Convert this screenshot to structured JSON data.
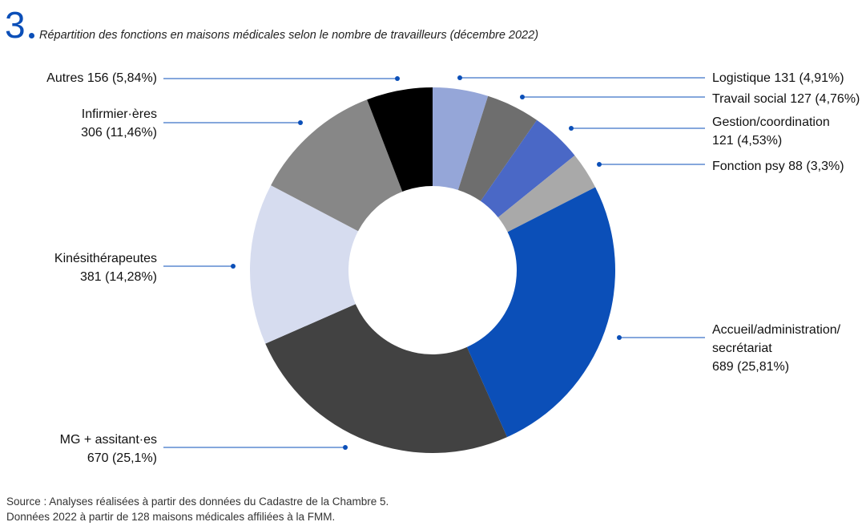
{
  "figure": {
    "number": "3",
    "title": "Répartition des fonctions en maisons médicales selon le nombre de travailleurs (décembre 2022)"
  },
  "source": {
    "line1": "Source : Analyses réalisées à partir des données du Cadastre de la Chambre 5.",
    "line2": "Données 2022 à partir de 128 maisons médicales affiliées à la FMM."
  },
  "chart_data": {
    "type": "pie",
    "subtype": "donut",
    "title": "Répartition des fonctions en maisons médicales selon le nombre de travailleurs (décembre 2022)",
    "slices": [
      {
        "name": "Logistique",
        "value": 131,
        "percent": 4.91,
        "color": "#95a6d8",
        "label_lines": [
          "Logistique 131 (4,91%)"
        ]
      },
      {
        "name": "Travail social",
        "value": 127,
        "percent": 4.76,
        "color": "#6e6e6e",
        "label_lines": [
          "Travail social 127 (4,76%)"
        ]
      },
      {
        "name": "Gestion/coordination",
        "value": 121,
        "percent": 4.53,
        "color": "#4a68c6",
        "label_lines": [
          "Gestion/coordination",
          "121 (4,53%)"
        ]
      },
      {
        "name": "Fonction psy",
        "value": 88,
        "percent": 3.3,
        "color": "#a9a9a9",
        "label_lines": [
          "Fonction psy 88 (3,3%)"
        ]
      },
      {
        "name": "Accueil/administration/secrétariat",
        "value": 689,
        "percent": 25.81,
        "color": "#0b4fb8",
        "label_lines": [
          "Accueil/administration/",
          "secrétariat",
          "689 (25,81%)"
        ]
      },
      {
        "name": "MG + assitant·es",
        "value": 670,
        "percent": 25.1,
        "color": "#424242",
        "label_lines": [
          "MG + assitant·es",
          "670 (25,1%)"
        ]
      },
      {
        "name": "Kinésithérapeutes",
        "value": 381,
        "percent": 14.28,
        "color": "#d6dcef",
        "label_lines": [
          "Kinésithérapeutes",
          "381 (14,28%)"
        ]
      },
      {
        "name": "Infirmier·ères",
        "value": 306,
        "percent": 11.46,
        "color": "#878787",
        "label_lines": [
          "Infirmier·ères",
          "306 (11,46%)"
        ]
      },
      {
        "name": "Autres",
        "value": 156,
        "percent": 5.84,
        "color": "#000000",
        "label_lines": [
          "Autres 156 (5,84%)"
        ]
      }
    ],
    "start": "12 o'clock",
    "direction": "clockwise",
    "legend": "callout labels with leader lines"
  }
}
